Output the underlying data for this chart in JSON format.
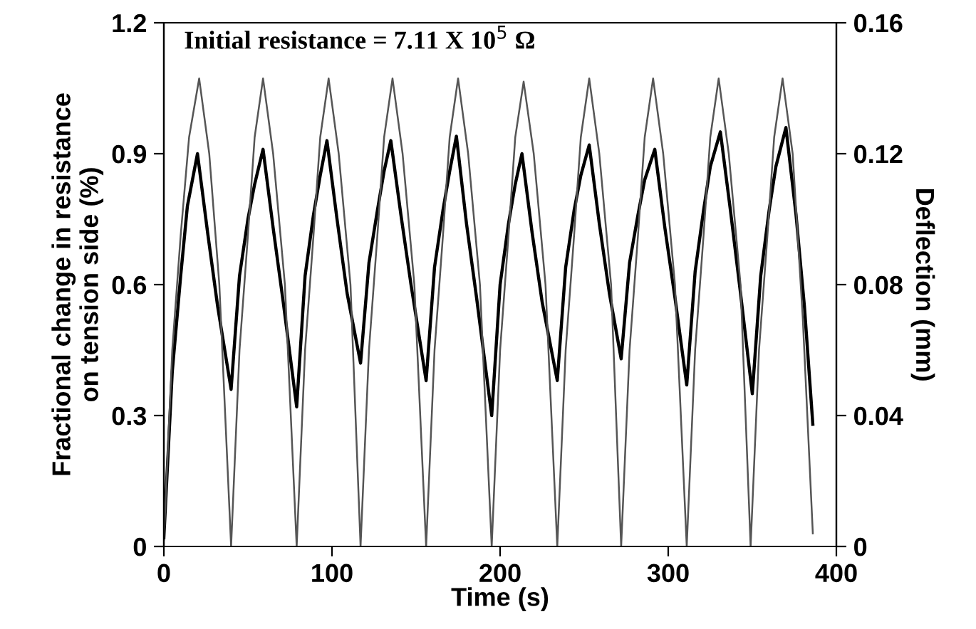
{
  "chart_data": {
    "type": "line",
    "xlabel": "Time (s)",
    "ylabel": "Fractional change in resistance\non tension side (%)",
    "y2label": "Deflection (mm)",
    "annotations": [
      "Initial resistance = 7.11 X 10$^{5}$ Ω"
    ],
    "xlim": [
      0,
      400
    ],
    "xticks": [
      0,
      100,
      200,
      300,
      400
    ],
    "ylim": [
      0,
      1.2
    ],
    "yticks": [
      0,
      0.3,
      0.6,
      0.9,
      1.2
    ],
    "y2lim": [
      0,
      0.16
    ],
    "y2ticks": [
      0,
      0.04,
      0.08,
      0.12,
      0.16
    ],
    "grid": false,
    "legend": false,
    "marker": "none",
    "line_style": "solid",
    "series": [
      {
        "color": "#000000",
        "axis": "y",
        "x": [
          0,
          5,
          10,
          14,
          20,
          26,
          32,
          40,
          45,
          50,
          54,
          59,
          65,
          71,
          79,
          84,
          89,
          93,
          97,
          103,
          109,
          117,
          122,
          127,
          131,
          135,
          141,
          147,
          156,
          161,
          166,
          170,
          174,
          180,
          186,
          195,
          200,
          205,
          209,
          213,
          219,
          225,
          234,
          239,
          244,
          248,
          253,
          259,
          265,
          272,
          277,
          282,
          286,
          292,
          298,
          304,
          311,
          316,
          321,
          325,
          331,
          337,
          343,
          350,
          355,
          360,
          364,
          370,
          376,
          381,
          386
        ],
        "values": [
          0.02,
          0.4,
          0.62,
          0.78,
          0.9,
          0.72,
          0.55,
          0.36,
          0.62,
          0.75,
          0.83,
          0.91,
          0.73,
          0.56,
          0.32,
          0.62,
          0.76,
          0.85,
          0.93,
          0.75,
          0.58,
          0.42,
          0.65,
          0.77,
          0.86,
          0.93,
          0.76,
          0.6,
          0.38,
          0.64,
          0.77,
          0.86,
          0.94,
          0.74,
          0.57,
          0.3,
          0.6,
          0.74,
          0.83,
          0.9,
          0.72,
          0.56,
          0.38,
          0.64,
          0.77,
          0.85,
          0.92,
          0.74,
          0.58,
          0.43,
          0.65,
          0.76,
          0.84,
          0.91,
          0.73,
          0.57,
          0.37,
          0.63,
          0.77,
          0.87,
          0.95,
          0.77,
          0.58,
          0.35,
          0.62,
          0.77,
          0.87,
          0.96,
          0.76,
          0.55,
          0.28
        ]
      },
      {
        "color": "#555555",
        "axis": "y2",
        "x": [
          0,
          5,
          10,
          15,
          21,
          27,
          33,
          40,
          45,
          50,
          54,
          59,
          65,
          72,
          79,
          84,
          89,
          93,
          98,
          104,
          111,
          117,
          122,
          127,
          131,
          136,
          142,
          149,
          156,
          161,
          166,
          170,
          175,
          181,
          188,
          195,
          200,
          205,
          209,
          214,
          220,
          227,
          234,
          239,
          244,
          248,
          253,
          259,
          266,
          272,
          277,
          282,
          286,
          291,
          297,
          304,
          311,
          316,
          321,
          325,
          330,
          336,
          343,
          349,
          354,
          359,
          363,
          368,
          374,
          380,
          386
        ],
        "values": [
          0.002,
          0.06,
          0.095,
          0.125,
          0.143,
          0.12,
          0.08,
          0,
          0.06,
          0.095,
          0.125,
          0.143,
          0.12,
          0.08,
          0,
          0.06,
          0.095,
          0.125,
          0.143,
          0.12,
          0.08,
          0,
          0.06,
          0.095,
          0.125,
          0.143,
          0.12,
          0.08,
          0,
          0.06,
          0.095,
          0.125,
          0.143,
          0.12,
          0.08,
          0,
          0.06,
          0.095,
          0.125,
          0.142,
          0.12,
          0.08,
          0,
          0.06,
          0.095,
          0.125,
          0.143,
          0.12,
          0.08,
          0,
          0.06,
          0.095,
          0.125,
          0.143,
          0.12,
          0.08,
          0,
          0.06,
          0.095,
          0.125,
          0.143,
          0.12,
          0.08,
          0,
          0.06,
          0.095,
          0.125,
          0.143,
          0.12,
          0.07,
          0.004
        ]
      }
    ]
  }
}
